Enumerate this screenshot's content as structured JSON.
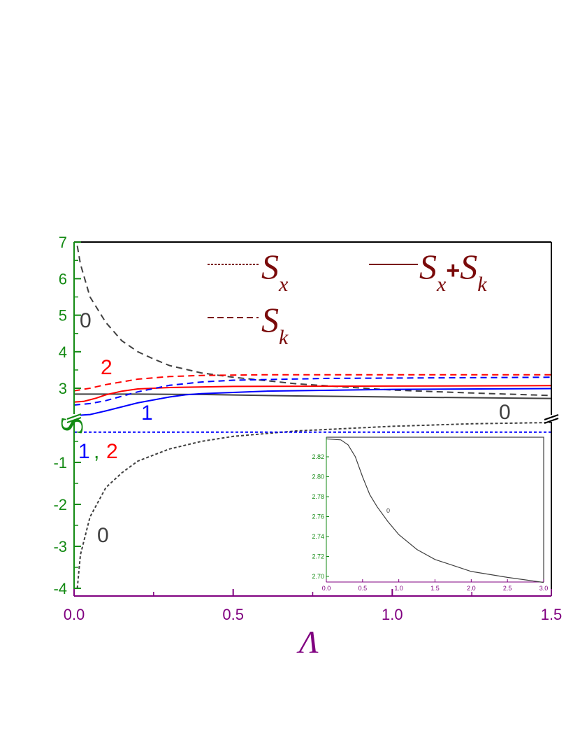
{
  "chart_data": {
    "type": "line",
    "xlabel": "Λ",
    "ylabel": "S",
    "xlim": [
      0,
      1.5
    ],
    "ylim_upper": [
      2.2,
      7
    ],
    "ylim_lower": [
      -4.1,
      0
    ],
    "broken_y_axis": true,
    "x_ticks": [
      "0.0",
      "0.5",
      "1.0",
      "1.5"
    ],
    "y_ticks_upper": [
      "7",
      "6",
      "5",
      "4",
      "3"
    ],
    "y_ticks_lower": [
      "-1",
      "-2",
      "-3",
      "-4"
    ],
    "colors": {
      "axis_y": "#138a13",
      "axis_x": "#800080",
      "legend": "#7a0a0a",
      "curve0": "#404040",
      "curve1": "#0000ff",
      "curve2": "#ff0000"
    },
    "legend": {
      "placement": "top-right",
      "entries": [
        {
          "style": "dotted",
          "base": "S",
          "sub": "x"
        },
        {
          "style": "dashed",
          "base": "S",
          "sub": "k"
        },
        {
          "style": "solid",
          "base": "S",
          "sub": "x",
          "plus": "+",
          "base2": "S",
          "sub2": "k"
        }
      ]
    },
    "annotations": [
      "0",
      "0",
      "0",
      "2",
      "1",
      "1",
      "2",
      ","
    ],
    "series": [
      {
        "label": "0",
        "quantity": "Sk",
        "style": "dashed",
        "color": "#404040",
        "x": [
          0.01,
          0.02,
          0.05,
          0.1,
          0.15,
          0.2,
          0.25,
          0.3,
          0.4,
          0.5,
          0.7,
          1.0,
          1.25,
          1.5
        ],
        "y": [
          6.9,
          6.4,
          5.5,
          4.8,
          4.3,
          4.0,
          3.8,
          3.62,
          3.42,
          3.3,
          3.12,
          2.95,
          2.87,
          2.8
        ]
      },
      {
        "label": "0",
        "quantity": "Sx",
        "style": "dotted",
        "color": "#404040",
        "x": [
          0.01,
          0.02,
          0.05,
          0.1,
          0.15,
          0.2,
          0.3,
          0.4,
          0.5,
          0.7,
          1.0,
          1.25,
          1.5
        ],
        "y": [
          -4.0,
          -3.2,
          -2.3,
          -1.6,
          -1.25,
          -0.97,
          -0.68,
          -0.5,
          -0.38,
          -0.25,
          -0.14,
          -0.08,
          -0.05
        ]
      },
      {
        "label": "0",
        "quantity": "Sx+Sk",
        "style": "solid",
        "color": "#404040",
        "x": [
          0,
          0.2,
          0.4,
          0.7,
          1.0,
          1.5
        ],
        "y": [
          2.84,
          2.84,
          2.83,
          2.79,
          2.76,
          2.72
        ]
      },
      {
        "label": "2",
        "quantity": "Sk",
        "style": "dashed",
        "color": "#ff0000",
        "x": [
          0,
          0.05,
          0.1,
          0.2,
          0.3,
          0.4,
          0.6,
          1.0,
          1.5
        ],
        "y": [
          2.93,
          3.0,
          3.1,
          3.25,
          3.32,
          3.35,
          3.37,
          3.37,
          3.37
        ]
      },
      {
        "label": "2",
        "quantity": "Sx+Sk",
        "style": "solid",
        "color": "#ff0000",
        "x": [
          0,
          0.03,
          0.07,
          0.1,
          0.15,
          0.2,
          0.3,
          0.5,
          1.0,
          1.5
        ],
        "y": [
          2.62,
          2.64,
          2.73,
          2.82,
          2.92,
          2.98,
          3.02,
          3.05,
          3.06,
          3.07
        ]
      },
      {
        "label": "1",
        "quantity": "Sk",
        "style": "dashed",
        "color": "#0000ff",
        "x": [
          0,
          0.05,
          0.1,
          0.2,
          0.3,
          0.4,
          0.5,
          0.8,
          1.5
        ],
        "y": [
          2.54,
          2.58,
          2.66,
          2.9,
          3.08,
          3.17,
          3.22,
          3.27,
          3.3
        ]
      },
      {
        "label": "1",
        "quantity": "Sx+Sk",
        "style": "solid",
        "color": "#0000ff",
        "x": [
          0,
          0.05,
          0.1,
          0.2,
          0.3,
          0.35,
          0.4,
          0.6,
          1.0,
          1.5
        ],
        "y": [
          2.25,
          2.28,
          2.38,
          2.6,
          2.76,
          2.82,
          2.85,
          2.92,
          2.97,
          2.99
        ]
      },
      {
        "label": "1, 2",
        "quantity": "Sx",
        "style": "dotted",
        "color": "#0000ff",
        "x": [
          0,
          1.5
        ],
        "y": [
          -0.28,
          -0.28
        ]
      }
    ],
    "inset": {
      "type": "line",
      "xlim": [
        0,
        3
      ],
      "ylim": [
        2.694,
        2.84
      ],
      "x_ticks": [
        "0.0",
        "0.5",
        "1.0",
        "1.5",
        "2.0",
        "2.5",
        "3.0"
      ],
      "y_ticks": [
        "2.82",
        "2.80",
        "2.78",
        "2.76",
        "2.74",
        "2.72",
        "2.70"
      ],
      "series": [
        {
          "label": "0",
          "color": "#404040",
          "x": [
            0,
            0.2,
            0.3,
            0.4,
            0.5,
            0.6,
            0.7,
            0.85,
            1.0,
            1.25,
            1.5,
            2.0,
            2.5,
            3.0
          ],
          "y": [
            2.838,
            2.837,
            2.832,
            2.82,
            2.8,
            2.782,
            2.77,
            2.755,
            2.742,
            2.727,
            2.717,
            2.705,
            2.699,
            2.694
          ]
        }
      ]
    }
  }
}
